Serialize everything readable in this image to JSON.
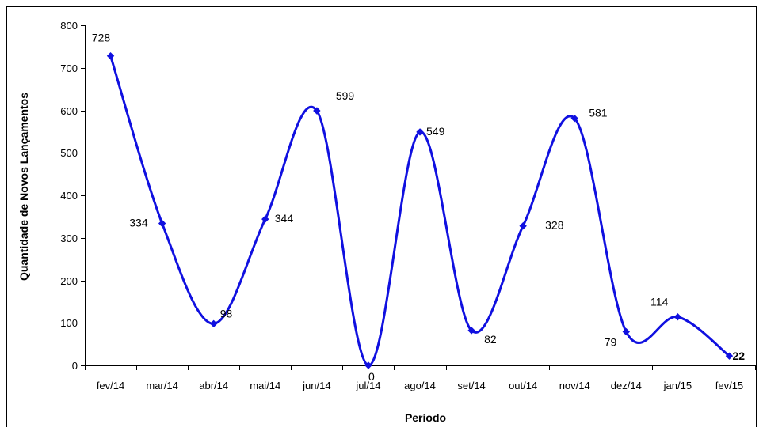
{
  "chart_data": {
    "type": "line",
    "title": "",
    "xlabel": "Período",
    "ylabel": "Quantidade de Novos Lançamentos",
    "categories": [
      "fev/14",
      "mar/14",
      "abr/14",
      "mai/14",
      "jun/14",
      "jul/14",
      "ago/14",
      "set/14",
      "out/14",
      "nov/14",
      "dez/14",
      "jan/15",
      "fev/15"
    ],
    "series": [
      {
        "values": [
          728,
          334,
          98,
          344,
          599,
          0,
          549,
          82,
          328,
          581,
          79,
          114,
          22
        ]
      }
    ],
    "data_labels": [
      "728",
      "334",
      "98",
      "344",
      "599",
      "0",
      "549",
      "82",
      "328",
      "581",
      "79",
      "114",
      "22"
    ],
    "ylim": [
      0,
      800
    ],
    "yticks": [
      0,
      100,
      200,
      300,
      400,
      500,
      600,
      700,
      800
    ],
    "grid": false,
    "legend": "none",
    "line_color": "#1010E0",
    "smooth": true
  }
}
